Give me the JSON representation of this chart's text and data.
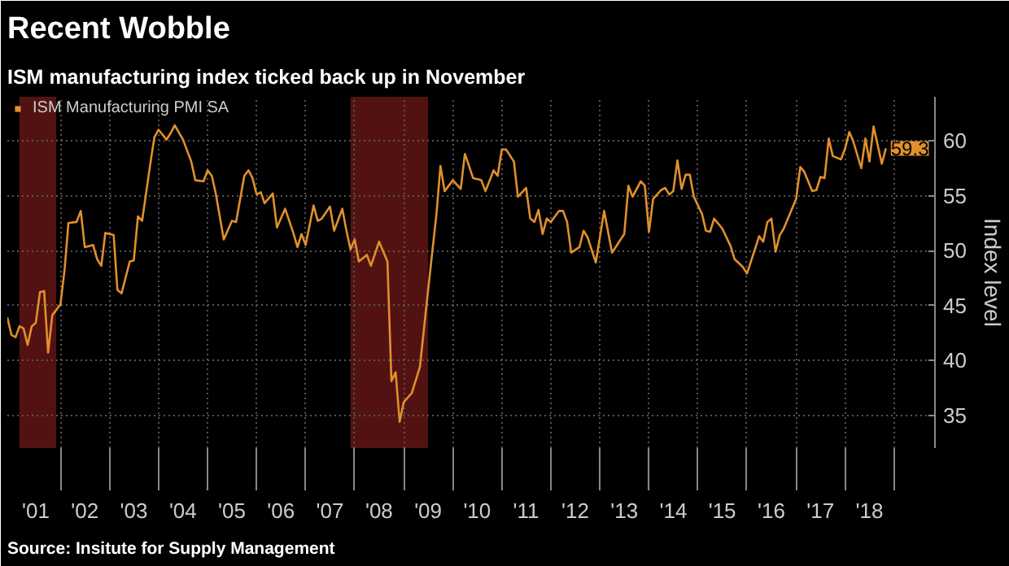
{
  "chart_data": {
    "type": "line",
    "title": "Recent Wobble",
    "subtitle": "ISM manufacturing index ticked back up in November",
    "ylabel": "Index level",
    "annotations": [
      "Source: Insitute for Supply Management",
      {
        "text": "59.3",
        "x": "2018-11",
        "y": 59.3
      }
    ],
    "legend": "top left",
    "grid": true,
    "xlim": [
      "2000-12-01",
      "2019-11-01"
    ],
    "ylim": [
      32,
      64
    ],
    "yticks": [
      35,
      40,
      45,
      50,
      55,
      60
    ],
    "xticks": [
      {
        "value": "2001-07-01",
        "label": "'01"
      },
      {
        "value": "2002-07-01",
        "label": "'02"
      },
      {
        "value": "2003-07-01",
        "label": "'03"
      },
      {
        "value": "2004-07-01",
        "label": "'04"
      },
      {
        "value": "2005-07-01",
        "label": "'05"
      },
      {
        "value": "2006-07-01",
        "label": "'06"
      },
      {
        "value": "2007-07-01",
        "label": "'07"
      },
      {
        "value": "2008-07-01",
        "label": "'08"
      },
      {
        "value": "2009-07-01",
        "label": "'09"
      },
      {
        "value": "2010-07-01",
        "label": "'10"
      },
      {
        "value": "2011-07-01",
        "label": "'11"
      },
      {
        "value": "2012-07-01",
        "label": "'12"
      },
      {
        "value": "2013-07-01",
        "label": "'13"
      },
      {
        "value": "2014-07-01",
        "label": "'14"
      },
      {
        "value": "2015-07-01",
        "label": "'15"
      },
      {
        "value": "2016-07-01",
        "label": "'16"
      },
      {
        "value": "2017-07-01",
        "label": "'17"
      },
      {
        "value": "2018-07-01",
        "label": "'18"
      },
      {
        "value": "2002-01-01",
        "label": null
      },
      {
        "value": "2003-01-01",
        "label": null
      },
      {
        "value": "2004-01-01",
        "label": null
      },
      {
        "value": "2005-01-01",
        "label": null
      },
      {
        "value": "2006-01-01",
        "label": null
      },
      {
        "value": "2007-01-01",
        "label": null
      },
      {
        "value": "2008-01-01",
        "label": null
      },
      {
        "value": "2009-01-01",
        "label": null
      },
      {
        "value": "2010-01-01",
        "label": null
      },
      {
        "value": "2011-01-01",
        "label": null
      },
      {
        "value": "2012-01-01",
        "label": null
      },
      {
        "value": "2013-01-01",
        "label": null
      },
      {
        "value": "2014-01-01",
        "label": null
      },
      {
        "value": "2015-01-01",
        "label": null
      },
      {
        "value": "2016-01-01",
        "label": null
      },
      {
        "value": "2017-01-01",
        "label": null
      },
      {
        "value": "2018-01-01",
        "label": null
      },
      {
        "value": "2019-01-01",
        "label": null
      }
    ],
    "bands": [
      {
        "axis": "x",
        "from": "2001-03-01",
        "to": "2001-11-30",
        "color": "#5c1414"
      },
      {
        "axis": "x",
        "from": "2007-12-01",
        "to": "2009-06-30",
        "color": "#5c1414"
      }
    ],
    "series": [
      {
        "name": "ISM Manufacturing PMI SA",
        "color": "#e0902c",
        "x": [
          "2000-12",
          "2001-01",
          "2001-02",
          "2001-03",
          "2001-04",
          "2001-05",
          "2001-06",
          "2001-07",
          "2001-08",
          "2001-09",
          "2001-10",
          "2001-11",
          "2002-01",
          "2002-02",
          "2002-03",
          "2002-05",
          "2002-06",
          "2002-07",
          "2002-09",
          "2002-10",
          "2002-11",
          "2002-12",
          "2003-02",
          "2003-03",
          "2003-04",
          "2003-06",
          "2003-07",
          "2003-08",
          "2003-09",
          "2003-11",
          "2003-12",
          "2004-01",
          "2004-03",
          "2004-04",
          "2004-05",
          "2004-07",
          "2004-09",
          "2004-10",
          "2004-12",
          "2005-01",
          "2005-02",
          "2005-03",
          "2005-05",
          "2005-07",
          "2005-08",
          "2005-10",
          "2005-11",
          "2005-12",
          "2006-01",
          "2006-02",
          "2006-03",
          "2006-05",
          "2006-06",
          "2006-08",
          "2006-10",
          "2006-11",
          "2006-12",
          "2007-01",
          "2007-03",
          "2007-04",
          "2007-05",
          "2007-07",
          "2007-08",
          "2007-10",
          "2007-11",
          "2007-12",
          "2008-01",
          "2008-02",
          "2008-04",
          "2008-05",
          "2008-07",
          "2008-09",
          "2008-10",
          "2008-11",
          "2008-12",
          "2009-01",
          "2009-03",
          "2009-05",
          "2009-07",
          "2009-09",
          "2009-10",
          "2009-11",
          "2010-01",
          "2010-03",
          "2010-04",
          "2010-06",
          "2010-08",
          "2010-09",
          "2010-11",
          "2010-12",
          "2011-01",
          "2011-02",
          "2011-04",
          "2011-05",
          "2011-07",
          "2011-08",
          "2011-09",
          "2011-10",
          "2011-11",
          "2011-12",
          "2012-01",
          "2012-03",
          "2012-04",
          "2012-05",
          "2012-06",
          "2012-08",
          "2012-09",
          "2012-10",
          "2012-12",
          "2013-02",
          "2013-04",
          "2013-07",
          "2013-08",
          "2013-09",
          "2013-11",
          "2013-12",
          "2014-01",
          "2014-02",
          "2014-04",
          "2014-05",
          "2014-06",
          "2014-07",
          "2014-08",
          "2014-09",
          "2014-10",
          "2014-11",
          "2014-12",
          "2015-02",
          "2015-03",
          "2015-04",
          "2015-05",
          "2015-07",
          "2015-09",
          "2015-10",
          "2015-12",
          "2016-01",
          "2016-04",
          "2016-05",
          "2016-06",
          "2016-07",
          "2016-08",
          "2016-09",
          "2016-10",
          "2017-01",
          "2017-02",
          "2017-03",
          "2017-05",
          "2017-06",
          "2017-07",
          "2017-08",
          "2017-09",
          "2017-10",
          "2017-12",
          "2018-01",
          "2018-02",
          "2018-03",
          "2018-05",
          "2018-06",
          "2018-07",
          "2018-08",
          "2018-10",
          "2018-11"
        ],
        "values": [
          43.9,
          42.3,
          42.1,
          43.1,
          42.9,
          41.4,
          43.1,
          43.4,
          46.2,
          46.3,
          40.7,
          44.1,
          45.1,
          48.3,
          52.5,
          52.6,
          53.6,
          50.3,
          50.5,
          49.2,
          48.6,
          51.6,
          51.4,
          46.4,
          46.1,
          49.0,
          49.1,
          53.1,
          52.7,
          57.9,
          60.3,
          61.0,
          60.1,
          60.7,
          61.4,
          60.1,
          58.1,
          56.4,
          56.3,
          57.3,
          56.8,
          55.3,
          51.0,
          52.7,
          52.6,
          56.8,
          57.3,
          56.6,
          55.1,
          55.3,
          54.3,
          55.2,
          52.1,
          53.8,
          51.6,
          50.3,
          51.5,
          50.5,
          54.1,
          52.7,
          52.9,
          54.0,
          51.8,
          53.8,
          51.8,
          50.1,
          51.0,
          49.0,
          49.6,
          48.6,
          50.8,
          49.0,
          38.1,
          38.9,
          34.4,
          36.2,
          37.0,
          39.4,
          46.4,
          53.3,
          57.7,
          55.4,
          56.4,
          55.6,
          58.8,
          56.6,
          56.4,
          55.4,
          57.3,
          56.8,
          59.2,
          59.2,
          58.1,
          54.9,
          55.7,
          52.9,
          52.6,
          53.7,
          51.5,
          52.9,
          52.6,
          53.6,
          53.6,
          52.6,
          49.8,
          50.3,
          51.8,
          51.2,
          48.9,
          53.6,
          49.8,
          51.5,
          55.9,
          54.9,
          56.3,
          55.9,
          51.7,
          54.7,
          55.5,
          55.7,
          55.1,
          55.4,
          58.2,
          55.6,
          56.9,
          56.9,
          54.9,
          53.3,
          51.8,
          51.7,
          52.9,
          52.0,
          50.4,
          49.2,
          48.5,
          47.9,
          51.3,
          50.8,
          52.6,
          52.9,
          49.9,
          51.4,
          52.0,
          54.7,
          57.6,
          57.2,
          55.4,
          55.5,
          56.7,
          56.6,
          60.2,
          58.6,
          58.3,
          59.3,
          60.8,
          60.0,
          57.5,
          60.2,
          58.1,
          61.3,
          57.9,
          59.3
        ]
      }
    ]
  }
}
